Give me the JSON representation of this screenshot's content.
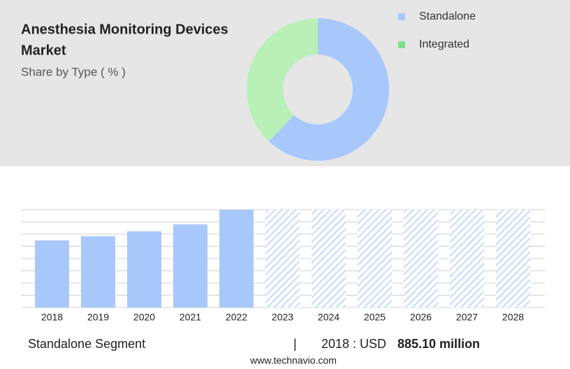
{
  "chart_data": [
    {
      "type": "donut",
      "title_lines": [
        "Anesthesia Monitoring Devices",
        "Market"
      ],
      "subtitle": "Share by Type ( % )",
      "categories": [
        "Standalone",
        "Integrated"
      ],
      "values": [
        62,
        38
      ],
      "colors": [
        "#a8c8fc",
        "#b8f0b8"
      ],
      "legend_colors": [
        "#a8c8fc",
        "#7ee08e"
      ]
    },
    {
      "type": "bar",
      "categories": [
        "2018",
        "2019",
        "2020",
        "2021",
        "2022",
        "2023",
        "2024",
        "2025",
        "2026",
        "2027",
        "2028"
      ],
      "values": [
        885.1,
        940,
        1005,
        1097,
        1291,
        null,
        null,
        null,
        null,
        null,
        null
      ],
      "color": "#a8c8fc",
      "forecast_color": "#a8c8fc",
      "ylim": [
        0,
        1291
      ],
      "grid": true
    }
  ],
  "footer": {
    "segment": "Standalone Segment",
    "separator": "|",
    "year_label": "2018 : USD",
    "value_label": "885.10 million",
    "source": "www.technavio.com"
  }
}
